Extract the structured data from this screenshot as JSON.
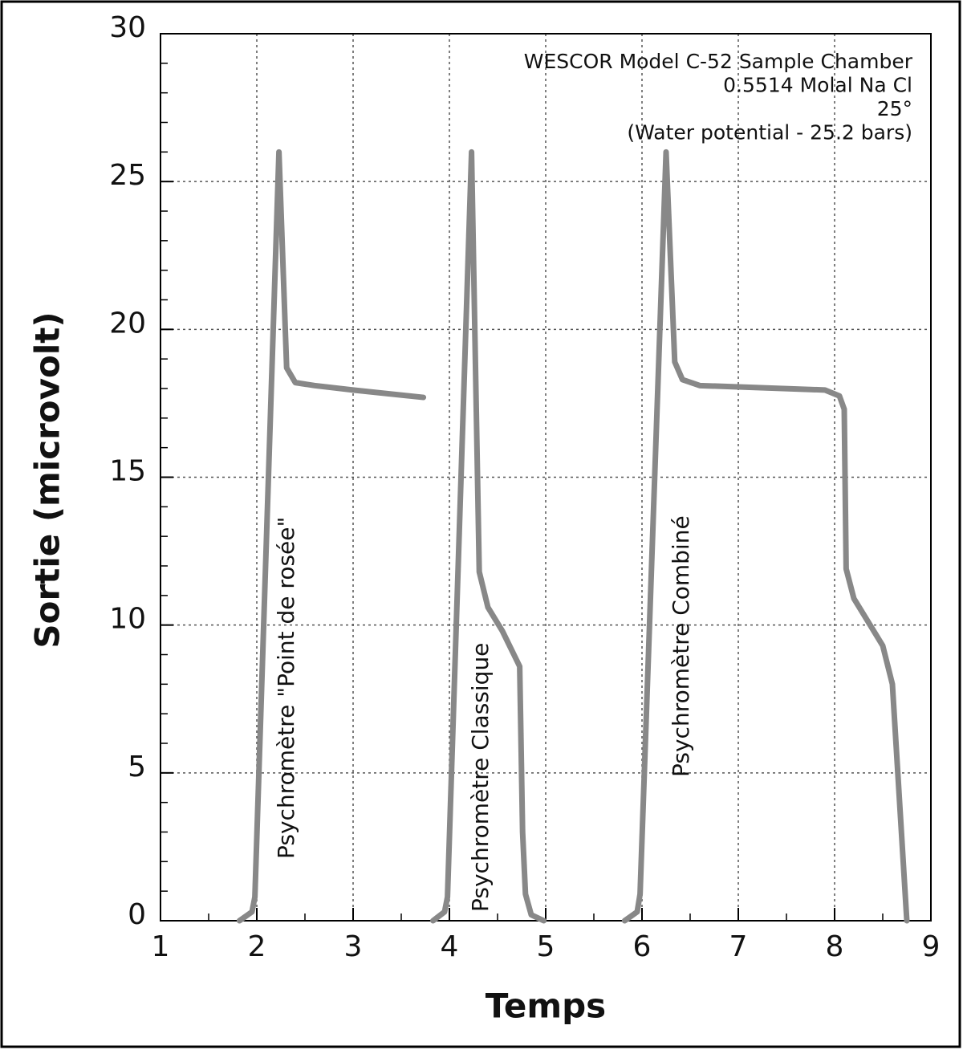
{
  "chart_data": {
    "type": "line",
    "xlabel": "Temps",
    "ylabel": "Sortie (microvolt)",
    "annotations": [
      "WESCOR Model C-52 Sample Chamber",
      "0.5514 Molal Na Cl",
      "25°",
      "(Water potential - 25.2 bars)"
    ],
    "xlim": [
      1,
      9
    ],
    "ylim": [
      0,
      30
    ],
    "xticks": [
      1,
      2,
      3,
      4,
      5,
      6,
      7,
      8,
      9
    ],
    "yticks": [
      0,
      5,
      10,
      15,
      20,
      25,
      30
    ],
    "grid": true,
    "series": [
      {
        "name": "Psychromètre \"Point de rosée\"",
        "color": "#888888",
        "x": [
          1.82,
          1.95,
          1.98,
          2.23,
          2.31,
          2.4,
          2.6,
          3.0,
          3.73
        ],
        "values": [
          0,
          0.3,
          0.8,
          26,
          18.7,
          18.2,
          18.1,
          17.95,
          17.7
        ]
      },
      {
        "name": "Psychromètre Classique",
        "color": "#888888",
        "x": [
          3.83,
          3.95,
          3.98,
          4.23,
          4.31,
          4.4,
          4.55,
          4.73,
          4.76,
          4.79,
          4.85,
          4.98
        ],
        "values": [
          0,
          0.3,
          0.8,
          26,
          11.8,
          10.6,
          9.8,
          8.6,
          3,
          0.9,
          0.2,
          0
        ]
      },
      {
        "name": "Psychromètre Combiné",
        "color": "#888888",
        "x": [
          5.82,
          5.95,
          5.98,
          6.25,
          6.34,
          6.42,
          6.6,
          7.9,
          8.05,
          8.1,
          8.12,
          8.2,
          8.35,
          8.5,
          8.6,
          8.75
        ],
        "values": [
          0,
          0.3,
          0.9,
          26,
          18.9,
          18.3,
          18.1,
          17.95,
          17.75,
          17.3,
          11.9,
          10.9,
          10.1,
          9.3,
          8,
          0
        ]
      }
    ]
  }
}
